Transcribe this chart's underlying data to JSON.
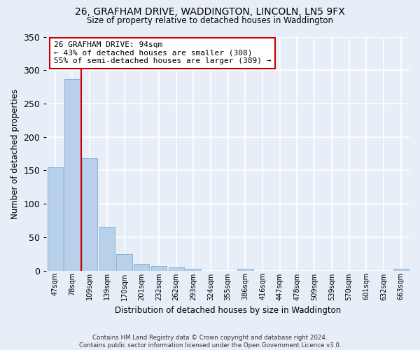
{
  "title": "26, GRAFHAM DRIVE, WADDINGTON, LINCOLN, LN5 9FX",
  "subtitle": "Size of property relative to detached houses in Waddington",
  "xlabel": "Distribution of detached houses by size in Waddington",
  "ylabel": "Number of detached properties",
  "bin_labels": [
    "47sqm",
    "78sqm",
    "109sqm",
    "139sqm",
    "170sqm",
    "201sqm",
    "232sqm",
    "262sqm",
    "293sqm",
    "324sqm",
    "355sqm",
    "386sqm",
    "416sqm",
    "447sqm",
    "478sqm",
    "509sqm",
    "539sqm",
    "570sqm",
    "601sqm",
    "632sqm",
    "663sqm"
  ],
  "bar_heights": [
    155,
    287,
    168,
    65,
    25,
    10,
    7,
    5,
    3,
    0,
    0,
    3,
    0,
    0,
    0,
    0,
    0,
    0,
    0,
    0,
    3
  ],
  "bar_color": "#b8d0ea",
  "bar_edge_color": "#7aadd4",
  "vline_x": 2.0,
  "vline_color": "#cc0000",
  "annotation_text": "26 GRAFHAM DRIVE: 94sqm\n← 43% of detached houses are smaller (308)\n55% of semi-detached houses are larger (389) →",
  "annotation_box_color": "#ffffff",
  "annotation_box_edge": "#cc0000",
  "ylim": [
    0,
    350
  ],
  "yticks": [
    0,
    50,
    100,
    150,
    200,
    250,
    300,
    350
  ],
  "background_color": "#e8eef8",
  "grid_color": "#ffffff",
  "footnote": "Contains HM Land Registry data © Crown copyright and database right 2024.\nContains public sector information licensed under the Open Government Licence v3.0."
}
